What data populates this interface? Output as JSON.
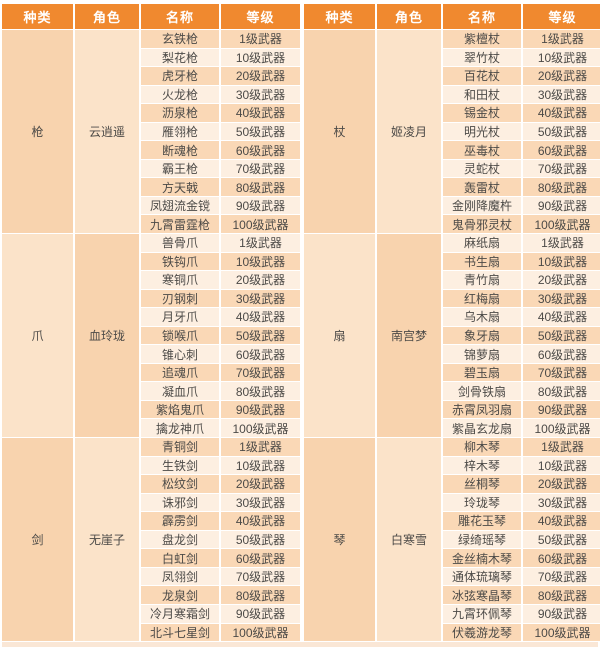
{
  "colors": {
    "header_bg": "#F0892F",
    "header_text": "#FFFFFF",
    "row_dark": "#FAD8B6",
    "row_light": "#FDEFE1",
    "merged_dark": "#F8D3AE",
    "merged_light": "#FBE3C9",
    "cell_text": "#4C4A47",
    "footer_strip": "#FAE7D6"
  },
  "chart_data": {
    "type": "table",
    "columns": [
      "种类",
      "角色",
      "名称",
      "等级"
    ],
    "tables": [
      {
        "groups": [
          {
            "type": "枪",
            "role": "云逍遥",
            "weapons": [
              {
                "name": "玄铁枪",
                "grade": "1级武器"
              },
              {
                "name": "梨花枪",
                "grade": "10级武器"
              },
              {
                "name": "虎牙枪",
                "grade": "20级武器"
              },
              {
                "name": "火龙枪",
                "grade": "30级武器"
              },
              {
                "name": "沥泉枪",
                "grade": "40级武器"
              },
              {
                "name": "雁翎枪",
                "grade": "50级武器"
              },
              {
                "name": "断魂枪",
                "grade": "60级武器"
              },
              {
                "name": "霸王枪",
                "grade": "70级武器"
              },
              {
                "name": "方天戟",
                "grade": "80级武器"
              },
              {
                "name": "凤翅流金镋",
                "grade": "90级武器"
              },
              {
                "name": "九霄雷霆枪",
                "grade": "100级武器"
              }
            ]
          },
          {
            "type": "爪",
            "role": "血玲珑",
            "weapons": [
              {
                "name": "兽骨爪",
                "grade": "1级武器"
              },
              {
                "name": "铁钩爪",
                "grade": "10级武器"
              },
              {
                "name": "寒铜爪",
                "grade": "20级武器"
              },
              {
                "name": "刃钢刺",
                "grade": "30级武器"
              },
              {
                "name": "月牙爪",
                "grade": "40级武器"
              },
              {
                "name": "锁喉爪",
                "grade": "50级武器"
              },
              {
                "name": "锥心刺",
                "grade": "60级武器"
              },
              {
                "name": "追魂爪",
                "grade": "70级武器"
              },
              {
                "name": "凝血爪",
                "grade": "80级武器"
              },
              {
                "name": "紫焰鬼爪",
                "grade": "90级武器"
              },
              {
                "name": "擒龙神爪",
                "grade": "100级武器"
              }
            ]
          },
          {
            "type": "剑",
            "role": "无崖子",
            "weapons": [
              {
                "name": "青铜剑",
                "grade": "1级武器"
              },
              {
                "name": "生铁剑",
                "grade": "10级武器"
              },
              {
                "name": "松纹剑",
                "grade": "20级武器"
              },
              {
                "name": "诛邪剑",
                "grade": "30级武器"
              },
              {
                "name": "霹雳剑",
                "grade": "40级武器"
              },
              {
                "name": "盘龙剑",
                "grade": "50级武器"
              },
              {
                "name": "白虹剑",
                "grade": "60级武器"
              },
              {
                "name": "凤翎剑",
                "grade": "70级武器"
              },
              {
                "name": "龙泉剑",
                "grade": "80级武器"
              },
              {
                "name": "冷月寒霜剑",
                "grade": "90级武器"
              },
              {
                "name": "北斗七星剑",
                "grade": "100级武器"
              }
            ]
          }
        ]
      },
      {
        "groups": [
          {
            "type": "杖",
            "role": "姬凌月",
            "weapons": [
              {
                "name": "紫檀杖",
                "grade": "1级武器"
              },
              {
                "name": "翠竹杖",
                "grade": "10级武器"
              },
              {
                "name": "百花杖",
                "grade": "20级武器"
              },
              {
                "name": "和田杖",
                "grade": "30级武器"
              },
              {
                "name": "锡金杖",
                "grade": "40级武器"
              },
              {
                "name": "明光杖",
                "grade": "50级武器"
              },
              {
                "name": "巫毒杖",
                "grade": "60级武器"
              },
              {
                "name": "灵蛇杖",
                "grade": "70级武器"
              },
              {
                "name": "轰雷杖",
                "grade": "80级武器"
              },
              {
                "name": "金刚降魔杵",
                "grade": "90级武器"
              },
              {
                "name": "鬼骨邪灵杖",
                "grade": "100级武器"
              }
            ]
          },
          {
            "type": "扇",
            "role": "南宫梦",
            "weapons": [
              {
                "name": "麻纸扇",
                "grade": "1级武器"
              },
              {
                "name": "书生扇",
                "grade": "10级武器"
              },
              {
                "name": "青竹扇",
                "grade": "20级武器"
              },
              {
                "name": "红梅扇",
                "grade": "30级武器"
              },
              {
                "name": "乌木扇",
                "grade": "40级武器"
              },
              {
                "name": "象牙扇",
                "grade": "50级武器"
              },
              {
                "name": "锦萝扇",
                "grade": "60级武器"
              },
              {
                "name": "碧玉扇",
                "grade": "70级武器"
              },
              {
                "name": "剑骨铁扇",
                "grade": "80级武器"
              },
              {
                "name": "赤霄凤羽扇",
                "grade": "90级武器"
              },
              {
                "name": "紫晶玄龙扇",
                "grade": "100级武器"
              }
            ]
          },
          {
            "type": "琴",
            "role": "白寒雪",
            "weapons": [
              {
                "name": "柳木琴",
                "grade": "1级武器"
              },
              {
                "name": "梓木琴",
                "grade": "10级武器"
              },
              {
                "name": "丝桐琴",
                "grade": "20级武器"
              },
              {
                "name": "玲珑琴",
                "grade": "30级武器"
              },
              {
                "name": "雕花玉琴",
                "grade": "40级武器"
              },
              {
                "name": "绿绮瑶琴",
                "grade": "50级武器"
              },
              {
                "name": "金丝楠木琴",
                "grade": "60级武器"
              },
              {
                "name": "通体琉璃琴",
                "grade": "70级武器"
              },
              {
                "name": "冰弦寒晶琴",
                "grade": "80级武器"
              },
              {
                "name": "九霄环佩琴",
                "grade": "90级武器"
              },
              {
                "name": "伏羲游龙琴",
                "grade": "100级武器"
              }
            ]
          }
        ]
      }
    ]
  }
}
